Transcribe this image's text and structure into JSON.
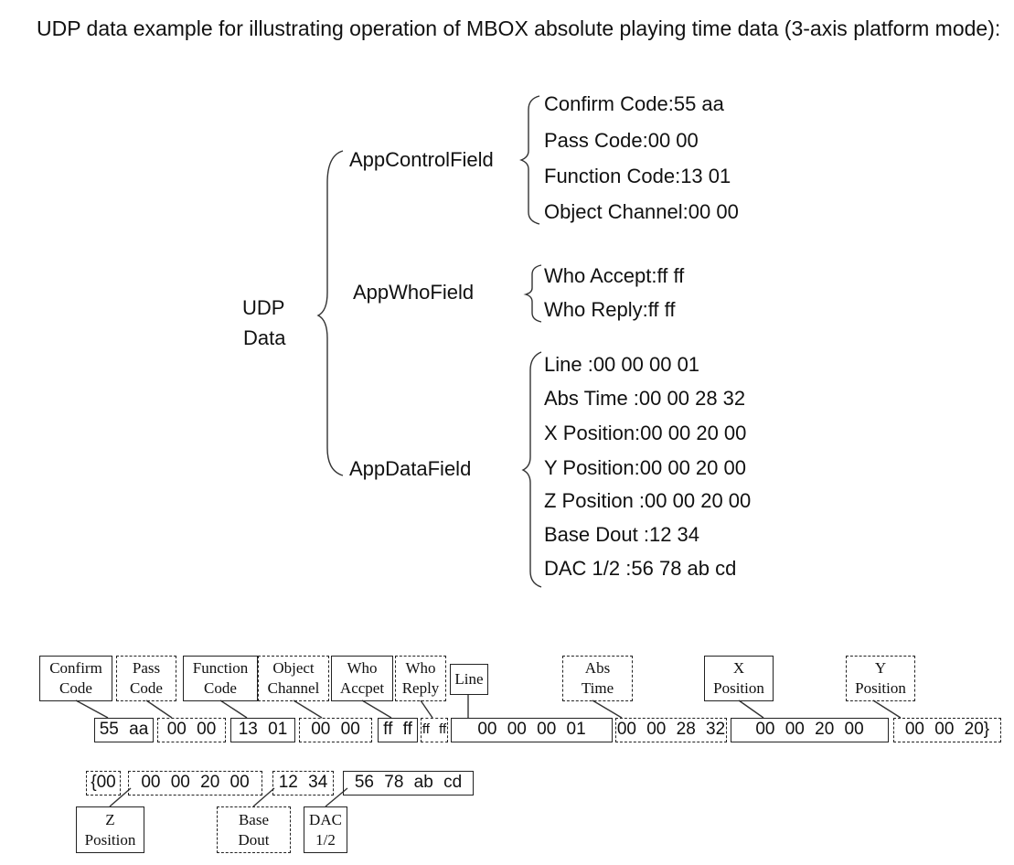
{
  "title": "UDP data example for illustrating operation of MBOX absolute playing time data (3-axis platform mode):",
  "tree": {
    "root": [
      "UDP",
      "Data"
    ],
    "app_control_field": {
      "label": "AppControlField",
      "items": [
        "Confirm Code:55  aa",
        "Pass Code:00  00",
        "Function Code:13  01",
        "Object Channel:00  00"
      ]
    },
    "app_who_field": {
      "label": "AppWhoField",
      "items": [
        "Who Accept:ff  ff",
        "Who Reply:ff  ff"
      ]
    },
    "app_data_field": {
      "label": "AppDataField",
      "items": [
        "Line :00  00  00  01",
        "Abs Time :00  00  28  32",
        "X Position:00  00  20  00",
        "Y Position:00  00  20  00",
        "Z Position :00  00  20  00",
        "Base Dout :12  34",
        "DAC 1/2 :56  78  ab  cd"
      ]
    }
  },
  "byte_map": {
    "labels": [
      [
        "Confirm",
        "Code"
      ],
      [
        "Pass",
        "Code"
      ],
      [
        "Function",
        "Code"
      ],
      [
        "Object",
        "Channel"
      ],
      [
        "Who",
        "Accpet"
      ],
      [
        "Who",
        "Reply"
      ],
      [
        "Line"
      ],
      [
        "Abs",
        "Time"
      ],
      [
        "X",
        "Position"
      ],
      [
        "Y",
        "Position"
      ],
      [
        "Z",
        "Position"
      ],
      [
        "Base",
        "Dout"
      ],
      [
        "DAC",
        "1/2"
      ]
    ],
    "row1": [
      "55 aa",
      "00 00",
      "13 01",
      "00 00",
      "ff ff",
      "ff ff",
      "00 00 00 01",
      "00 00 28 32",
      "00 00 20 00",
      "00 00 20}"
    ],
    "row2": [
      "{00",
      "00 00 20 00",
      "12 34",
      "56 78 ab cd"
    ]
  }
}
